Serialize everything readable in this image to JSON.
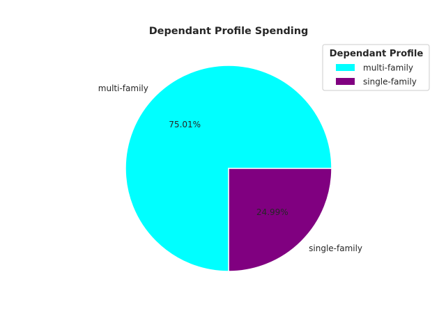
{
  "chart_data": {
    "type": "pie",
    "title": "Dependant Profile Spending",
    "categories": [
      "multi-family",
      "single-family"
    ],
    "values": [
      75.01,
      24.99
    ],
    "percent_labels": [
      "75.01%",
      "24.99%"
    ],
    "colors": [
      "#00ffff",
      "#800080"
    ],
    "legend": {
      "title": "Dependant Profile",
      "placement": "top-right",
      "entries": [
        "multi-family",
        "single-family"
      ]
    }
  }
}
